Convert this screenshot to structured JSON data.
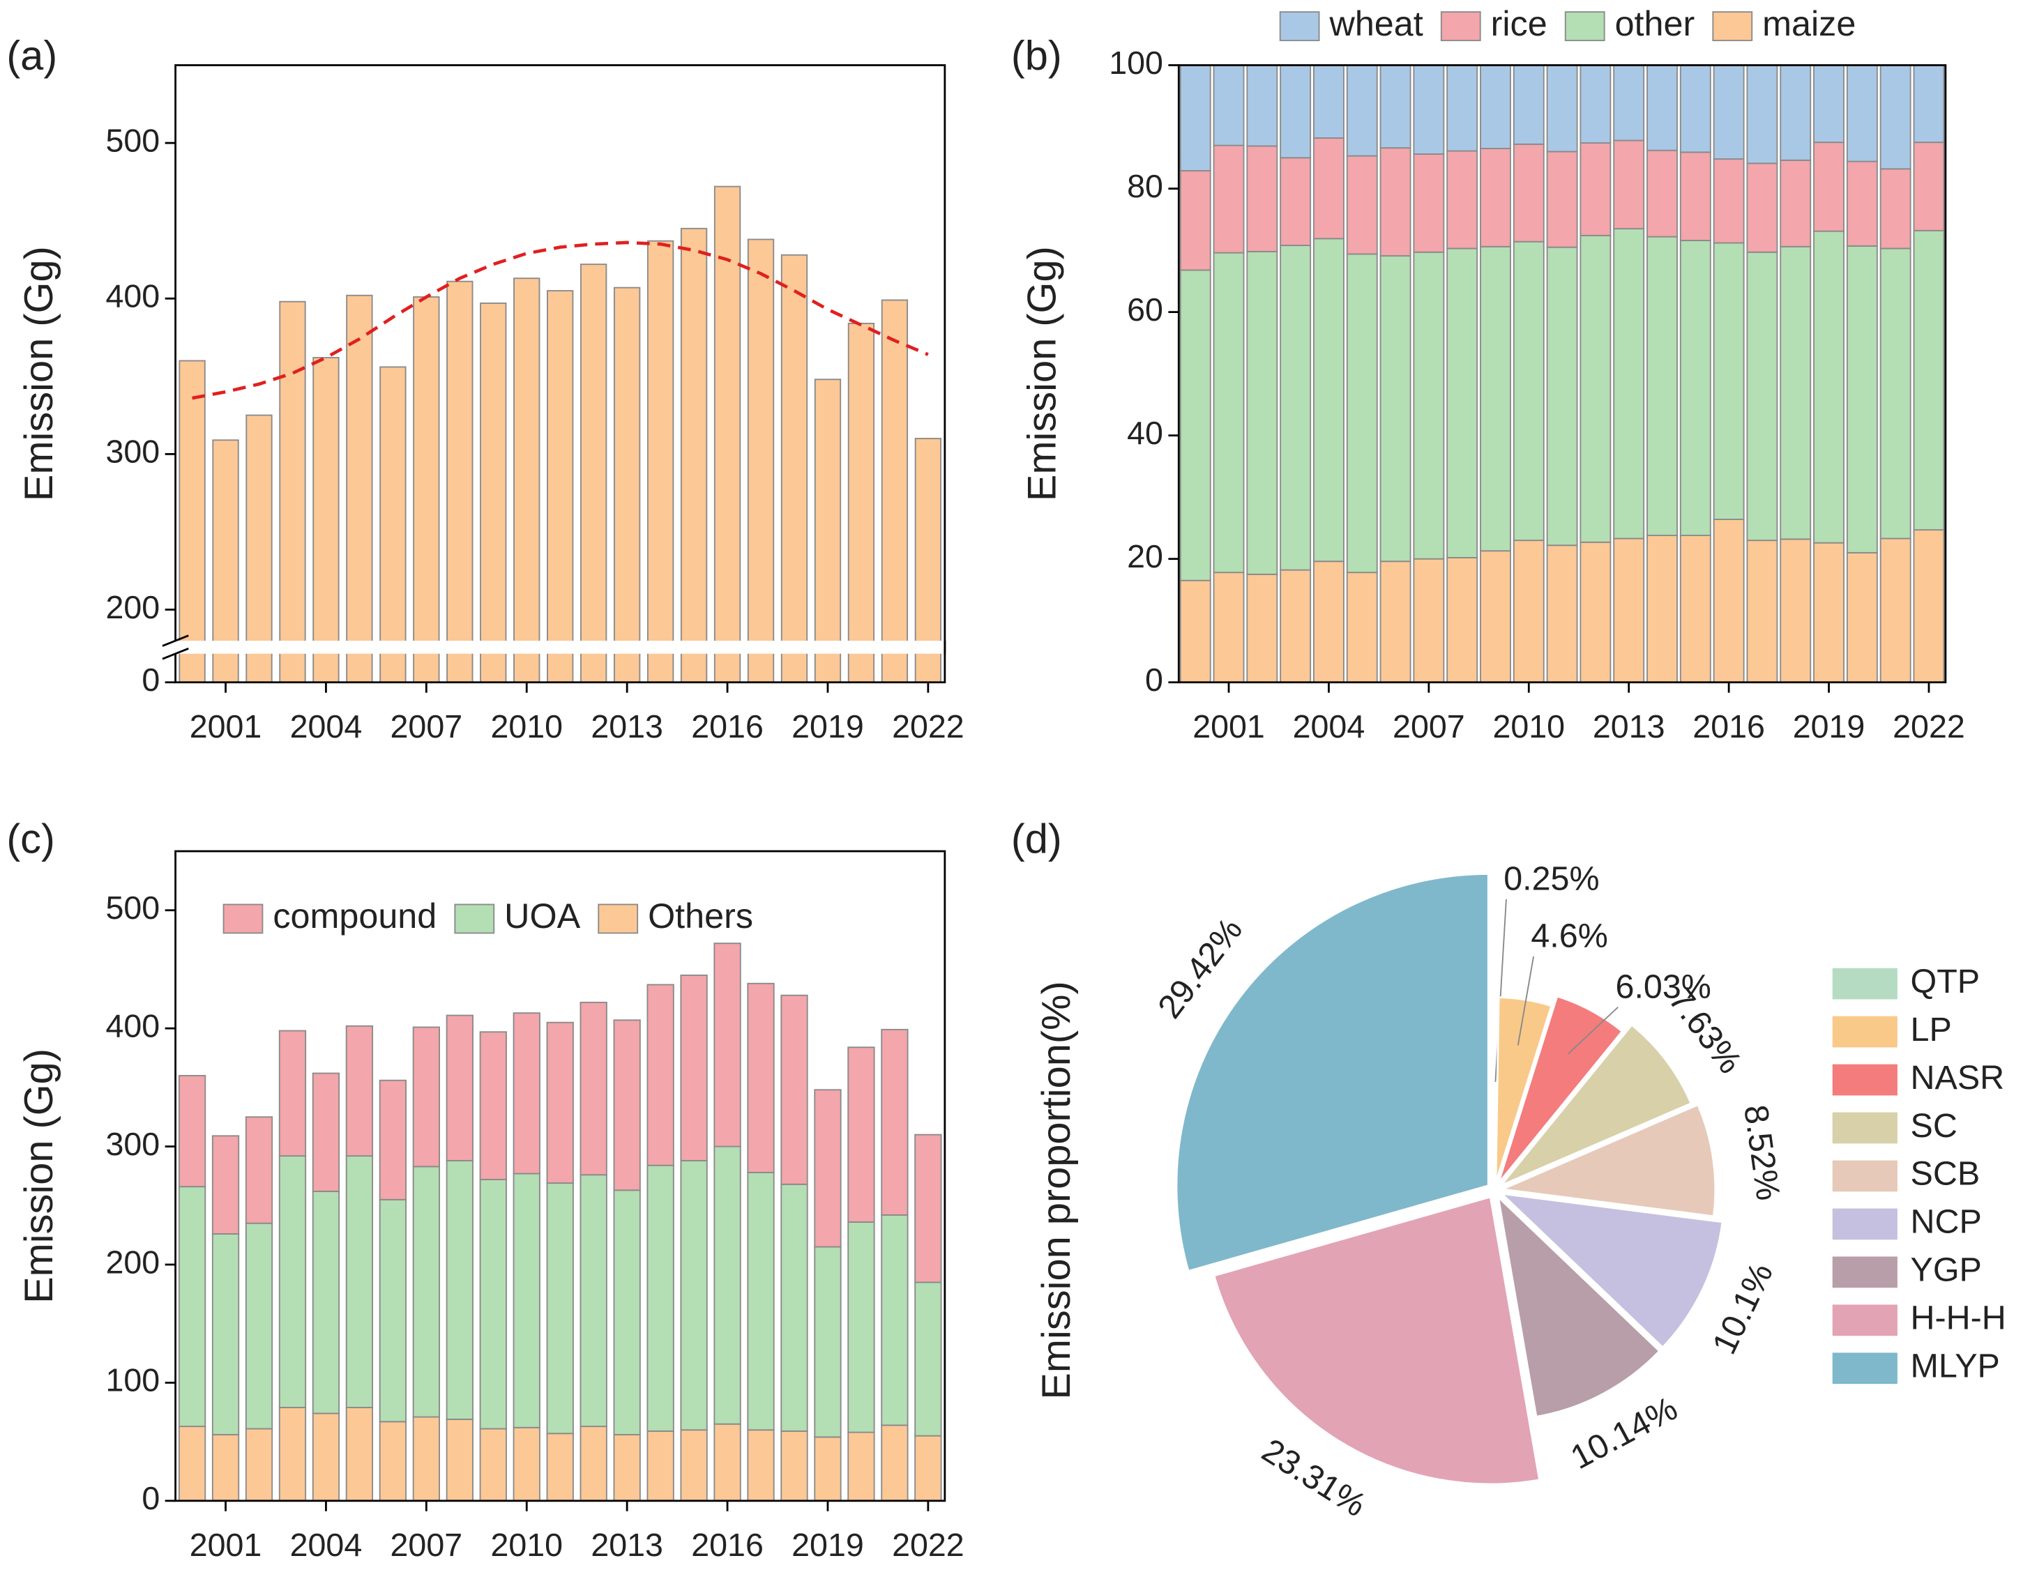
{
  "chart_data": [
    {
      "type": "bar",
      "panel": "(a)",
      "y_label": "Emission (Gg)",
      "x": [
        2000,
        2001,
        2002,
        2003,
        2004,
        2005,
        2006,
        2007,
        2008,
        2009,
        2010,
        2011,
        2012,
        2013,
        2014,
        2015,
        2016,
        2017,
        2018,
        2019,
        2020,
        2021,
        2022
      ],
      "values": [
        360,
        309,
        325,
        398,
        362,
        402,
        356,
        401,
        411,
        397,
        413,
        405,
        422,
        407,
        437,
        445,
        472,
        438,
        428,
        348,
        384,
        399,
        310
      ],
      "color": "#fcc896",
      "trend": {
        "color": "#e02020",
        "values": [
          336,
          340,
          345,
          352,
          362,
          374,
          388,
          401,
          413,
          422,
          429,
          433,
          435,
          436,
          435,
          431,
          425,
          416,
          405,
          393,
          383,
          373,
          364
        ]
      },
      "xlim": [
        1999.5,
        2022.5
      ],
      "xticks": [
        2001,
        2004,
        2007,
        2010,
        2013,
        2016,
        2019,
        2022
      ],
      "ylim": [
        0,
        550
      ],
      "ybreak": [
        20,
        180
      ],
      "yticks": [
        0,
        200,
        300,
        400,
        500
      ],
      "grid": false
    },
    {
      "type": "stacked_bar",
      "panel": "(b)",
      "y_label": "Emission (Gg)",
      "x": [
        2000,
        2001,
        2002,
        2003,
        2004,
        2005,
        2006,
        2007,
        2008,
        2009,
        2010,
        2011,
        2012,
        2013,
        2014,
        2015,
        2016,
        2017,
        2018,
        2019,
        2020,
        2021,
        2022
      ],
      "series": [
        {
          "name": "maize",
          "color": "#fcc896",
          "values": [
            16.5,
            17.8,
            17.5,
            18.2,
            19.6,
            17.8,
            19.6,
            20,
            20.2,
            21.3,
            23,
            22.2,
            22.7,
            23.3,
            23.8,
            23.8,
            26.4,
            23,
            23.2,
            22.6,
            21,
            23.3,
            24.7
          ]
        },
        {
          "name": "other",
          "color": "#b4deb4",
          "values": [
            50.3,
            51.8,
            52.3,
            52.6,
            52.3,
            51.6,
            49.5,
            49.7,
            50.1,
            49.3,
            48.4,
            48.3,
            49.7,
            50.2,
            48.4,
            47.8,
            44.8,
            46.7,
            47.4,
            50.5,
            49.7,
            47,
            48.5
          ]
        },
        {
          "name": "rice",
          "color": "#f3a6ab",
          "values": [
            16.1,
            17.4,
            17.1,
            14.2,
            16.3,
            15.9,
            17.5,
            15.9,
            15.8,
            15.9,
            15.8,
            15.5,
            15,
            14.3,
            14,
            14.3,
            13.6,
            14.4,
            14,
            14.4,
            13.7,
            12.9,
            14.3
          ]
        },
        {
          "name": "wheat",
          "color": "#a9c8e6",
          "values": [
            17.1,
            13,
            13.1,
            15,
            11.8,
            14.7,
            13.4,
            14.4,
            13.9,
            13.5,
            12.8,
            14,
            12.6,
            12.2,
            13.8,
            14.1,
            15.2,
            15.9,
            15.4,
            12.5,
            15.6,
            16.8,
            12.5
          ]
        }
      ],
      "legend": "top",
      "xlim": [
        1999.5,
        2022.5
      ],
      "xticks": [
        2001,
        2004,
        2007,
        2010,
        2013,
        2016,
        2019,
        2022
      ],
      "ylim": [
        0,
        100
      ],
      "yticks": [
        0,
        20,
        40,
        60,
        80,
        100
      ],
      "grid": false
    },
    {
      "type": "stacked_bar",
      "panel": "(c)",
      "y_label": "Emission (Gg)",
      "x": [
        2000,
        2001,
        2002,
        2003,
        2004,
        2005,
        2006,
        2007,
        2008,
        2009,
        2010,
        2011,
        2012,
        2013,
        2014,
        2015,
        2016,
        2017,
        2018,
        2019,
        2020,
        2021,
        2022
      ],
      "series": [
        {
          "name": "Others",
          "color": "#fcc896",
          "values": [
            63,
            56,
            61,
            79,
            74,
            79,
            67,
            71,
            69,
            61,
            62,
            57,
            63,
            56,
            59,
            60,
            65,
            60,
            59,
            54,
            58,
            64,
            55
          ]
        },
        {
          "name": "UOA",
          "color": "#b4deb4",
          "values": [
            203,
            170,
            174,
            213,
            188,
            213,
            188,
            212,
            219,
            211,
            215,
            212,
            213,
            207,
            225,
            228,
            235,
            218,
            209,
            161,
            178,
            178,
            130
          ]
        },
        {
          "name": "compound",
          "color": "#f3a6ab",
          "values": [
            94,
            83,
            90,
            106,
            100,
            110,
            101,
            118,
            123,
            125,
            136,
            136,
            146,
            144,
            153,
            157,
            172,
            160,
            160,
            133,
            148,
            157,
            125
          ]
        }
      ],
      "legend": "upper left",
      "xlim": [
        1999.5,
        2022.5
      ],
      "xticks": [
        2001,
        2004,
        2007,
        2010,
        2013,
        2016,
        2019,
        2022
      ],
      "ylim": [
        0,
        550
      ],
      "yticks": [
        0,
        100,
        200,
        300,
        400,
        500
      ],
      "grid": false
    },
    {
      "type": "pie",
      "panel": "(d)",
      "y_label": "Emission proportion(%)",
      "categories": [
        "QTP",
        "LP",
        "NASR",
        "SC",
        "SCB",
        "NCP",
        "YGP",
        "H-H-H",
        "MLYP"
      ],
      "values": [
        0.25,
        4.6,
        6.03,
        7.63,
        8.52,
        10.1,
        10.14,
        23.31,
        29.42
      ],
      "value_labels": [
        "0.25%",
        "4.6%",
        "6.03%",
        "7.63%",
        "8.52%",
        "10.1%",
        "10.14%",
        "23.31%",
        "29.42%"
      ],
      "colors": [
        "#b5dcc3",
        "#f9c98a",
        "#f47c7c",
        "#d8d0a8",
        "#e6c9b9",
        "#c5c0e0",
        "#b89ea8",
        "#e2a3b5",
        "#7fb8cb"
      ],
      "legend": "right"
    }
  ]
}
